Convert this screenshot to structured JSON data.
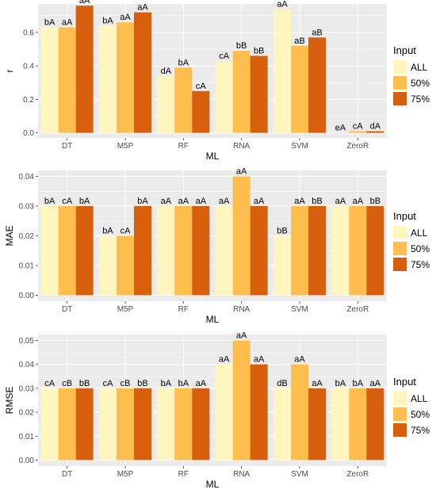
{
  "legend": {
    "title": "Input",
    "items": [
      {
        "label": "ALL",
        "color": "#FFF5BF"
      },
      {
        "label": "50%",
        "color": "#FDBE4E"
      },
      {
        "label": "75%",
        "color": "#D85F0E"
      }
    ]
  },
  "colors": {
    "panel_background": "#EBEBEB",
    "gridline": "#FFFFFF",
    "tick_text": "#4D4D4D"
  },
  "chart_data": [
    {
      "type": "bar",
      "xlabel": "ML",
      "ylabel": "r",
      "ylim": [
        -0.03,
        0.77
      ],
      "yticks": [
        0.0,
        0.2,
        0.4,
        0.6
      ],
      "ytick_labels": [
        "0.0",
        "0.2",
        "0.4",
        "0.6"
      ],
      "categories": [
        "DT",
        "M5P",
        "RF",
        "RNA",
        "SVM",
        "ZeroR"
      ],
      "grid": true,
      "legend_position": "right",
      "series": [
        {
          "name": "ALL",
          "values": [
            0.63,
            0.64,
            0.34,
            0.43,
            0.74,
            0.0
          ],
          "labels": [
            "bA",
            "bA",
            "dA",
            "cA",
            "aA",
            "eA"
          ]
        },
        {
          "name": "50%",
          "values": [
            0.63,
            0.66,
            0.39,
            0.49,
            0.52,
            0.01
          ],
          "labels": [
            "aA",
            "aA",
            "bA",
            "bB",
            "aB",
            "cA"
          ]
        },
        {
          "name": "75%",
          "values": [
            0.76,
            0.72,
            0.25,
            0.46,
            0.57,
            0.01
          ],
          "labels": [
            "aA",
            "aA",
            "cA",
            "bB",
            "aB",
            "dA"
          ]
        }
      ]
    },
    {
      "type": "bar",
      "xlabel": "ML",
      "ylabel": "MAE",
      "ylim": [
        -0.002,
        0.042
      ],
      "yticks": [
        0.0,
        0.01,
        0.02,
        0.03,
        0.04
      ],
      "ytick_labels": [
        "0.00",
        "0.01",
        "0.02",
        "0.03",
        "0.04"
      ],
      "categories": [
        "DT",
        "M5P",
        "RF",
        "RNA",
        "SVM",
        "ZeroR"
      ],
      "grid": true,
      "legend_position": "right",
      "series": [
        {
          "name": "ALL",
          "values": [
            0.03,
            0.02,
            0.03,
            0.03,
            0.02,
            0.03
          ],
          "labels": [
            "bA",
            "bA",
            "aA",
            "aA",
            "bB",
            "aA"
          ]
        },
        {
          "name": "50%",
          "values": [
            0.03,
            0.02,
            0.03,
            0.04,
            0.03,
            0.03
          ],
          "labels": [
            "cA",
            "cA",
            "aA",
            "aA",
            "aA",
            "aA"
          ]
        },
        {
          "name": "75%",
          "values": [
            0.03,
            0.03,
            0.03,
            0.03,
            0.03,
            0.03
          ],
          "labels": [
            "bA",
            "bA",
            "aA",
            "aA",
            "bB",
            "bB"
          ]
        }
      ]
    },
    {
      "type": "bar",
      "xlabel": "ML",
      "ylabel": "RMSE",
      "ylim": [
        -0.0025,
        0.0525
      ],
      "yticks": [
        0.0,
        0.01,
        0.02,
        0.03,
        0.04,
        0.05
      ],
      "ytick_labels": [
        "0.00",
        "0.01",
        "0.02",
        "0.03",
        "0.04",
        "0.05"
      ],
      "categories": [
        "DT",
        "M5P",
        "RF",
        "RNA",
        "SVM",
        "ZeroR"
      ],
      "grid": true,
      "legend_position": "right",
      "series": [
        {
          "name": "ALL",
          "values": [
            0.03,
            0.03,
            0.03,
            0.04,
            0.03,
            0.03
          ],
          "labels": [
            "cA",
            "cA",
            "bA",
            "aA",
            "dB",
            "bA"
          ]
        },
        {
          "name": "50%",
          "values": [
            0.03,
            0.03,
            0.03,
            0.05,
            0.04,
            0.03
          ],
          "labels": [
            "cB",
            "cB",
            "bA",
            "aA",
            "aA",
            "bA"
          ]
        },
        {
          "name": "75%",
          "values": [
            0.03,
            0.03,
            0.03,
            0.04,
            0.03,
            0.03
          ],
          "labels": [
            "bB",
            "bB",
            "aA",
            "aA",
            "aA",
            "aA"
          ]
        }
      ]
    }
  ]
}
